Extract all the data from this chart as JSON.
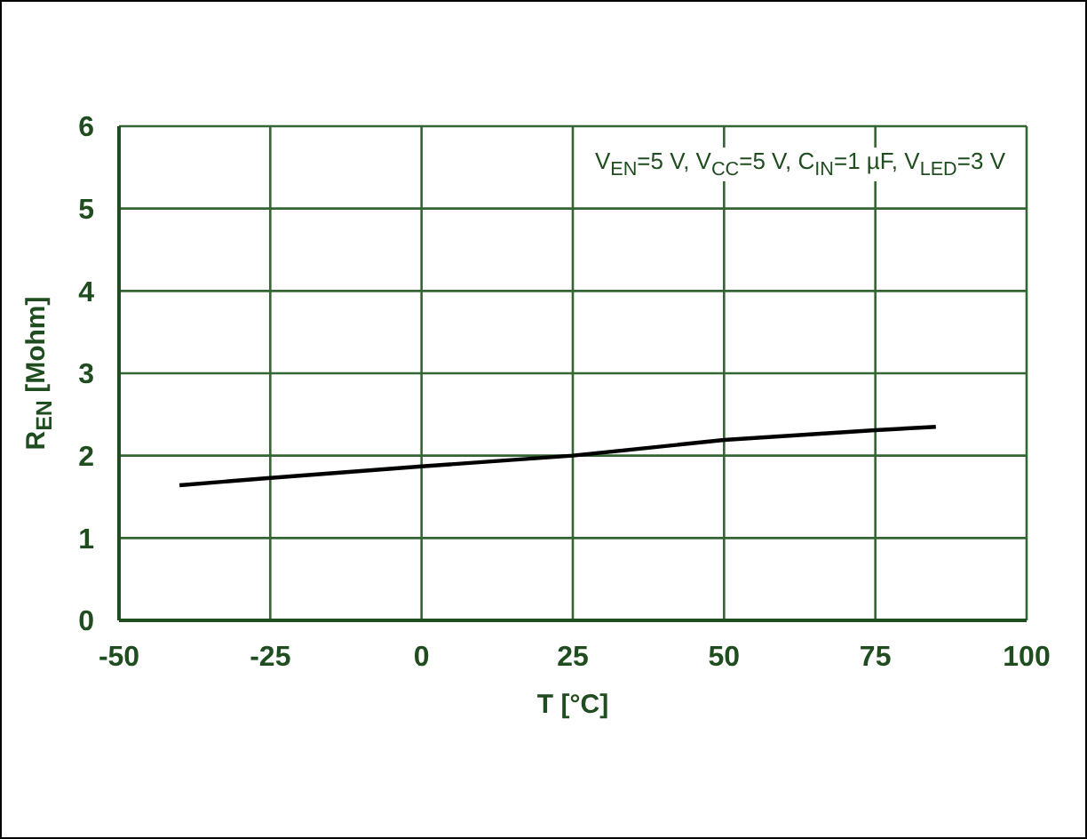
{
  "chart_data": {
    "type": "line",
    "xlabel": "T [°C]",
    "ylabel": "R$_{EN}$ [Mohm]",
    "annotations": [
      "V$_{EN}$=5 V, V$_{CC}$=5 V, C$_{IN}$=1 µF, V$_{LED}$=3 V"
    ],
    "x": [
      -40,
      -25,
      0,
      25,
      50,
      75,
      85
    ],
    "series": [
      {
        "color": "#000000",
        "values": [
          1.64,
          1.73,
          1.87,
          2.0,
          2.19,
          2.31,
          2.35
        ]
      }
    ],
    "xlim": [
      -50,
      100
    ],
    "xticks": [
      -50,
      -25,
      0,
      25,
      50,
      75,
      100
    ],
    "ylim": [
      0,
      6
    ],
    "yticks": [
      0,
      1,
      2,
      3,
      4,
      5,
      6
    ],
    "grid": true,
    "marker": "none",
    "line_style": "solid"
  }
}
